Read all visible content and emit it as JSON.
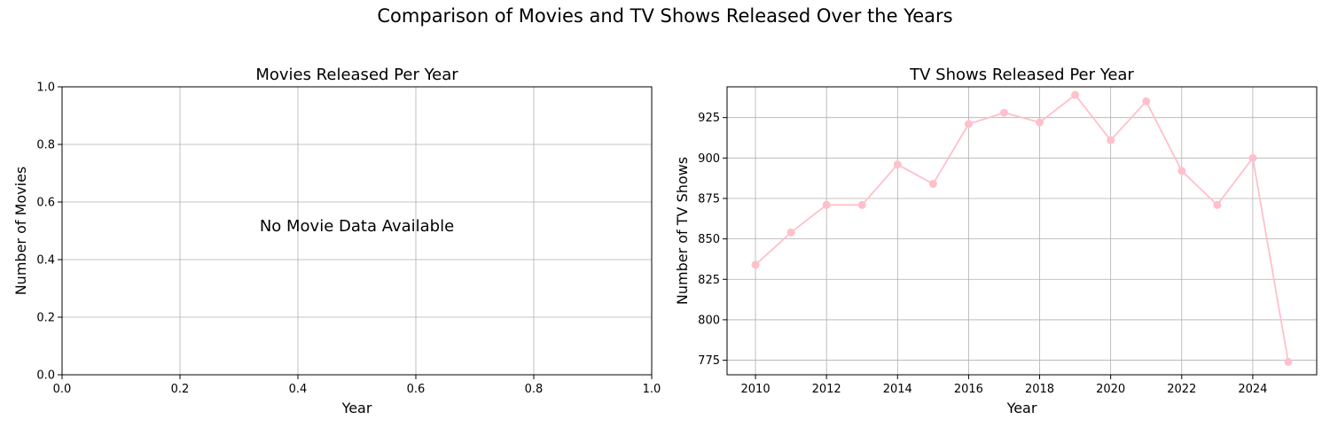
{
  "figure": {
    "suptitle": "Comparison of Movies and TV Shows Released Over the Years"
  },
  "chart_data": [
    {
      "type": "line",
      "title": "Movies Released Per Year",
      "xlabel": "Year",
      "ylabel": "Number of Movies",
      "xlim": [
        0.0,
        1.0
      ],
      "ylim": [
        0.0,
        1.0
      ],
      "xticks": [
        "0.0",
        "0.2",
        "0.4",
        "0.6",
        "0.8",
        "1.0"
      ],
      "yticks": [
        "0.0",
        "0.2",
        "0.4",
        "0.6",
        "0.8",
        "1.0"
      ],
      "grid": true,
      "annotation": "No Movie Data Available",
      "series": []
    },
    {
      "type": "line",
      "title": "TV Shows Released Per Year",
      "xlabel": "Year",
      "ylabel": "Number of TV Shows",
      "xlim": [
        2009.2,
        2025.8
      ],
      "ylim": [
        766,
        944
      ],
      "xticks": [
        "2010",
        "2012",
        "2014",
        "2016",
        "2018",
        "2020",
        "2022",
        "2024"
      ],
      "yticks": [
        "775",
        "800",
        "825",
        "850",
        "875",
        "900",
        "925"
      ],
      "grid": true,
      "color": "#ffc0cb",
      "series": [
        {
          "x": [
            2010,
            2011,
            2012,
            2013,
            2014,
            2015,
            2016,
            2017,
            2018,
            2019,
            2020,
            2021,
            2022,
            2023,
            2024,
            2025
          ],
          "values": [
            834,
            854,
            871,
            871,
            896,
            884,
            921,
            928,
            922,
            939,
            911,
            935,
            892,
            871,
            900,
            774
          ]
        }
      ]
    }
  ]
}
